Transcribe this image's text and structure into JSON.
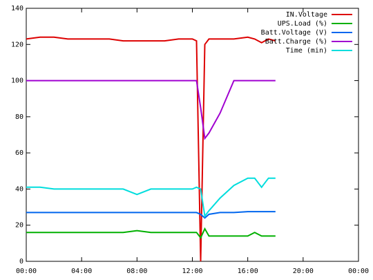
{
  "chart_data": {
    "type": "line",
    "x": [
      0,
      1,
      2,
      3,
      4,
      5,
      6,
      7,
      8,
      9,
      10,
      11,
      12,
      12.3,
      12.6,
      12.9,
      13.2,
      14,
      15,
      16,
      16.5,
      17,
      17.5,
      18
    ],
    "series": [
      {
        "name": "IN.Voltage",
        "color": "#dd0000",
        "values": [
          123,
          124,
          124,
          123,
          123,
          123,
          123,
          122,
          122,
          122,
          122,
          123,
          123,
          122,
          0,
          120,
          123,
          123,
          123,
          124,
          123,
          121,
          123,
          122
        ]
      },
      {
        "name": "UPS.Load (%)",
        "color": "#00b000",
        "values": [
          16,
          16,
          16,
          16,
          16,
          16,
          16,
          16,
          17,
          16,
          16,
          16,
          16,
          16,
          13,
          18,
          14,
          14,
          14,
          14,
          16,
          14,
          14,
          14
        ]
      },
      {
        "name": "Batt.Voltage (V)",
        "color": "#0066ee",
        "values": [
          27,
          27,
          27,
          27,
          27,
          27,
          27,
          27,
          27,
          27,
          27,
          27,
          27,
          27,
          26,
          24,
          26,
          27,
          27,
          27.5,
          27.5,
          27.5,
          27.5,
          27.5
        ]
      },
      {
        "name": "Batt.Charge (%)",
        "color": "#a000d0",
        "values": [
          100,
          100,
          100,
          100,
          100,
          100,
          100,
          100,
          100,
          100,
          100,
          100,
          100,
          100,
          85,
          68,
          71,
          82,
          100,
          100,
          100,
          100,
          100,
          100
        ]
      },
      {
        "name": "Time (min)",
        "color": "#00dddd",
        "values": [
          41,
          41,
          40,
          40,
          40,
          40,
          40,
          40,
          37,
          40,
          40,
          40,
          40,
          41,
          40,
          25,
          28,
          35,
          42,
          46,
          46,
          41,
          46,
          46
        ]
      }
    ],
    "xlim": [
      0,
      24
    ],
    "xticks": [
      {
        "value": 0,
        "label": "00:00"
      },
      {
        "value": 4,
        "label": "04:00"
      },
      {
        "value": 8,
        "label": "08:00"
      },
      {
        "value": 12,
        "label": "12:00"
      },
      {
        "value": 16,
        "label": "16:00"
      },
      {
        "value": 20,
        "label": "20:00"
      },
      {
        "value": 24,
        "label": "00:00"
      }
    ],
    "ylim": [
      0,
      140
    ],
    "yticks": [
      0,
      20,
      40,
      60,
      80,
      100,
      120,
      140
    ],
    "legend": "upper right"
  }
}
